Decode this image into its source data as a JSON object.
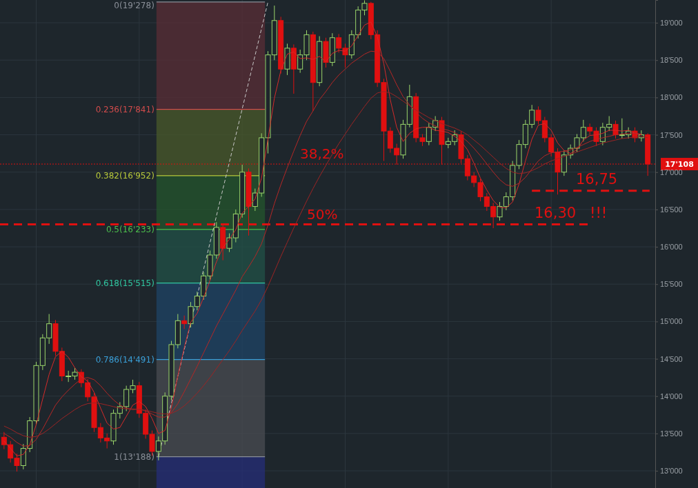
{
  "chart_data": {
    "type": "candlestick",
    "categories": [
      null,
      null,
      null,
      null,
      null,
      null,
      null,
      null,
      null,
      null,
      null,
      null,
      null,
      null,
      null,
      null,
      null,
      null,
      null,
      null,
      null,
      null,
      null,
      null,
      null,
      null,
      null,
      null,
      null,
      null,
      null,
      null,
      null,
      null,
      null,
      null,
      null,
      null,
      null,
      null,
      null,
      null,
      null,
      null,
      null,
      null,
      null,
      null,
      null,
      null,
      null,
      null,
      null,
      null,
      null,
      null,
      null,
      null,
      null,
      null,
      null,
      null,
      null,
      null,
      null,
      null,
      null,
      null,
      null,
      null,
      null,
      null,
      null,
      null,
      null,
      null,
      null,
      null,
      null,
      null,
      null,
      null,
      null,
      null,
      null,
      null,
      null,
      null,
      null,
      null,
      null,
      null,
      null,
      null,
      null,
      null,
      null,
      null,
      null,
      null,
      null
    ],
    "ohlc": [
      [
        13450,
        13520,
        13290,
        13350
      ],
      [
        13350,
        13400,
        13110,
        13170
      ],
      [
        13170,
        13230,
        12990,
        13070
      ],
      [
        13070,
        13360,
        13020,
        13300
      ],
      [
        13300,
        13720,
        13250,
        13670
      ],
      [
        13670,
        14460,
        13620,
        14410
      ],
      [
        14410,
        14830,
        14350,
        14780
      ],
      [
        14780,
        15100,
        14700,
        14970
      ],
      [
        14970,
        15020,
        14540,
        14600
      ],
      [
        14600,
        14650,
        14200,
        14270
      ],
      [
        14270,
        14340,
        14190,
        14270
      ],
      [
        14270,
        14380,
        14220,
        14320
      ],
      [
        14320,
        14360,
        14120,
        14180
      ],
      [
        14180,
        14230,
        13930,
        13990
      ],
      [
        13990,
        14040,
        13520,
        13580
      ],
      [
        13580,
        13640,
        13380,
        13440
      ],
      [
        13440,
        13500,
        13300,
        13400
      ],
      [
        13400,
        13820,
        13350,
        13770
      ],
      [
        13770,
        13920,
        13700,
        13860
      ],
      [
        13860,
        14140,
        13800,
        14090
      ],
      [
        14090,
        14220,
        14040,
        14140
      ],
      [
        14140,
        14190,
        13710,
        13770
      ],
      [
        13770,
        13820,
        13430,
        13490
      ],
      [
        13490,
        13540,
        13200,
        13260
      ],
      [
        13260,
        13460,
        13140,
        13400
      ],
      [
        13400,
        14050,
        13350,
        14000
      ],
      [
        14000,
        14740,
        13950,
        14690
      ],
      [
        14690,
        15100,
        14640,
        15010
      ],
      [
        15010,
        15080,
        14900,
        14970
      ],
      [
        14970,
        15260,
        14920,
        15200
      ],
      [
        15200,
        15400,
        15150,
        15340
      ],
      [
        15340,
        15660,
        15290,
        15610
      ],
      [
        15610,
        15950,
        15560,
        15890
      ],
      [
        15890,
        16330,
        15840,
        16260
      ],
      [
        16260,
        16310,
        15820,
        15980
      ],
      [
        15980,
        16180,
        15930,
        16120
      ],
      [
        16120,
        16500,
        16060,
        16440
      ],
      [
        16440,
        17100,
        16390,
        17000
      ],
      [
        17000,
        17050,
        16150,
        16540
      ],
      [
        16540,
        16780,
        16480,
        16720
      ],
      [
        16720,
        17520,
        16670,
        17460
      ],
      [
        17460,
        18620,
        17250,
        18570
      ],
      [
        18570,
        19230,
        18500,
        19030
      ],
      [
        19030,
        19080,
        18320,
        18380
      ],
      [
        18380,
        18720,
        18300,
        18660
      ],
      [
        18660,
        18710,
        18050,
        18380
      ],
      [
        18380,
        18640,
        18330,
        18570
      ],
      [
        18570,
        18900,
        18500,
        18840
      ],
      [
        18840,
        18880,
        17820,
        18200
      ],
      [
        18200,
        18820,
        18150,
        18750
      ],
      [
        18750,
        18800,
        18400,
        18470
      ],
      [
        18470,
        18860,
        18420,
        18800
      ],
      [
        18800,
        18850,
        18600,
        18660
      ],
      [
        18660,
        18720,
        18400,
        18570
      ],
      [
        18570,
        18900,
        18520,
        18840
      ],
      [
        18840,
        19220,
        18790,
        19170
      ],
      [
        19170,
        19300,
        19100,
        19260
      ],
      [
        19260,
        19280,
        18780,
        18840
      ],
      [
        18840,
        18900,
        18140,
        18200
      ],
      [
        18200,
        18250,
        17150,
        17550
      ],
      [
        17550,
        17600,
        17260,
        17320
      ],
      [
        17320,
        17380,
        17100,
        17230
      ],
      [
        17230,
        17700,
        17180,
        17640
      ],
      [
        17640,
        18170,
        17600,
        18010
      ],
      [
        18010,
        18060,
        17400,
        17460
      ],
      [
        17460,
        17510,
        17350,
        17410
      ],
      [
        17410,
        17660,
        17360,
        17600
      ],
      [
        17600,
        17750,
        17550,
        17690
      ],
      [
        17690,
        17740,
        17100,
        17370
      ],
      [
        17370,
        17460,
        17320,
        17410
      ],
      [
        17410,
        17560,
        17360,
        17500
      ],
      [
        17500,
        17550,
        17120,
        17180
      ],
      [
        17180,
        17230,
        16890,
        16950
      ],
      [
        16950,
        17000,
        16800,
        16860
      ],
      [
        16860,
        16910,
        16610,
        16670
      ],
      [
        16670,
        16720,
        16480,
        16540
      ],
      [
        16540,
        16590,
        16250,
        16400
      ],
      [
        16400,
        16600,
        16350,
        16540
      ],
      [
        16540,
        16730,
        16490,
        16670
      ],
      [
        16670,
        17150,
        16620,
        17090
      ],
      [
        17090,
        17430,
        17040,
        17370
      ],
      [
        17370,
        17700,
        17320,
        17640
      ],
      [
        17640,
        17900,
        17590,
        17830
      ],
      [
        17830,
        17880,
        17640,
        17690
      ],
      [
        17690,
        17740,
        17400,
        17460
      ],
      [
        17460,
        17510,
        17210,
        17270
      ],
      [
        17270,
        17320,
        16700,
        17000
      ],
      [
        17000,
        17290,
        16950,
        17230
      ],
      [
        17230,
        17370,
        17180,
        17320
      ],
      [
        17320,
        17510,
        17270,
        17460
      ],
      [
        17460,
        17700,
        17410,
        17600
      ],
      [
        17600,
        17650,
        17500,
        17550
      ],
      [
        17550,
        17600,
        17350,
        17410
      ],
      [
        17410,
        17660,
        17360,
        17600
      ],
      [
        17600,
        17750,
        17550,
        17640
      ],
      [
        17640,
        17690,
        17450,
        17500
      ],
      [
        17500,
        17720,
        17450,
        17500
      ],
      [
        17500,
        17600,
        17450,
        17550
      ],
      [
        17550,
        17600,
        17400,
        17460
      ],
      [
        17460,
        17560,
        17410,
        17500
      ],
      [
        17500,
        17520,
        16950,
        17108
      ]
    ],
    "series": [
      {
        "type": "line",
        "color": "#d42a2a",
        "values": [
          13400,
          13300,
          13200,
          13220,
          13350,
          13620,
          13960,
          14290,
          14530,
          14600,
          14520,
          14380,
          14260,
          14200,
          14050,
          13840,
          13640,
          13560,
          13580,
          13730,
          13880,
          13930,
          13860,
          13700,
          13500,
          13540,
          13850,
          14270,
          14650,
          14990,
          15110,
          15320,
          15550,
          15800,
          15990,
          16100,
          16230,
          16450,
          16540,
          16640,
          16920,
          17440,
          17990,
          18360,
          18580,
          18610,
          18520,
          18530,
          18510,
          18550,
          18480,
          18590,
          18630,
          18620,
          18690,
          18830,
          18970,
          19010,
          18810,
          18450,
          17970,
          17600,
          17410,
          17520,
          17580,
          17600,
          17600,
          17560,
          17550,
          17530,
          17480,
          17410,
          17300,
          17120,
          16920,
          16760,
          16620,
          16530,
          16520,
          16600,
          16840,
          17150,
          17440,
          17630,
          17650,
          17560,
          17390,
          17290,
          17250,
          17300,
          17430,
          17490,
          17500,
          17520,
          17560,
          17560,
          17550,
          17560,
          17520,
          17500,
          null
        ]
      },
      {
        "type": "line",
        "color": "#b52626",
        "values": [
          13500,
          13450,
          13380,
          13330,
          13340,
          13420,
          13560,
          13720,
          13880,
          13990,
          14080,
          14160,
          14230,
          14250,
          14220,
          14140,
          14040,
          13950,
          13880,
          13840,
          13820,
          13830,
          13800,
          13760,
          13720,
          13720,
          13780,
          13900,
          14060,
          14230,
          14400,
          14580,
          14760,
          14940,
          15100,
          15260,
          15420,
          15600,
          15730,
          15870,
          16040,
          16290,
          16580,
          16830,
          17060,
          17280,
          17490,
          17680,
          17820,
          17970,
          18080,
          18200,
          18300,
          18380,
          18460,
          18520,
          18580,
          18620,
          18610,
          18520,
          18350,
          18170,
          18010,
          17900,
          17800,
          17720,
          17660,
          17620,
          17580,
          17560,
          17530,
          17480,
          17410,
          17320,
          17220,
          17110,
          17000,
          16900,
          16830,
          16810,
          16850,
          16930,
          17040,
          17150,
          17220,
          17260,
          17270,
          17280,
          17300,
          17330,
          17370,
          17410,
          17440,
          17460,
          17480,
          17500,
          17510,
          17520,
          17520,
          17510,
          null
        ]
      },
      {
        "type": "line",
        "color": "#9c2424",
        "values": [
          13600,
          13560,
          13510,
          13470,
          13450,
          13460,
          13500,
          13560,
          13630,
          13700,
          13760,
          13820,
          13870,
          13900,
          13910,
          13900,
          13880,
          13860,
          13840,
          13830,
          13830,
          13820,
          13810,
          13790,
          13770,
          13760,
          13770,
          13810,
          13870,
          13950,
          14040,
          14140,
          14250,
          14370,
          14490,
          14610,
          14740,
          14880,
          15010,
          15140,
          15290,
          15470,
          15670,
          15870,
          16060,
          16250,
          16430,
          16610,
          16780,
          16940,
          17090,
          17240,
          17380,
          17510,
          17640,
          17760,
          17880,
          17990,
          18060,
          18080,
          18060,
          18010,
          17950,
          17890,
          17830,
          17780,
          17730,
          17690,
          17650,
          17620,
          17590,
          17550,
          17500,
          17430,
          17360,
          17280,
          17200,
          17120,
          17050,
          17000,
          16980,
          16990,
          17020,
          17060,
          17110,
          17150,
          17180,
          17210,
          17240,
          17270,
          17300,
          17330,
          17360,
          17390,
          17410,
          17430,
          17450,
          17460,
          17470,
          17480,
          17460
        ]
      },
      {
        "type": "line",
        "color": "#c8c8c8",
        "line_style": "dashed",
        "values": [
          null,
          null,
          null,
          null,
          null,
          null,
          null,
          null,
          null,
          null,
          null,
          null,
          null,
          null,
          null,
          null,
          null,
          null,
          null,
          null,
          null,
          null,
          null,
          null,
          13190,
          null,
          null,
          null,
          null,
          null,
          null,
          null,
          null,
          null,
          null,
          null,
          null,
          null,
          null,
          null,
          null,
          19280,
          null,
          null,
          null,
          null,
          null,
          null,
          null,
          null,
          null,
          null,
          null,
          null,
          null,
          null,
          null,
          null,
          null,
          null,
          null,
          null,
          null,
          null,
          null,
          null,
          null,
          null,
          null,
          null,
          null,
          null,
          null,
          null,
          null,
          null,
          null,
          null,
          null,
          null,
          null,
          null,
          null,
          null,
          null,
          null,
          null,
          null,
          null,
          null,
          null,
          null,
          null,
          null,
          null,
          null,
          null,
          null,
          null,
          null,
          null
        ]
      }
    ],
    "ylim": [
      12770,
      19305
    ],
    "yticks": [
      {
        "value": 13000,
        "label": "13'000"
      },
      {
        "value": 13500,
        "label": "13'500"
      },
      {
        "value": 14000,
        "label": "14'000"
      },
      {
        "value": 14500,
        "label": "14'500"
      },
      {
        "value": 15000,
        "label": "15'000"
      },
      {
        "value": 15500,
        "label": "15'500"
      },
      {
        "value": 16000,
        "label": "16'000"
      },
      {
        "value": 16500,
        "label": "16'500"
      },
      {
        "value": 17000,
        "label": "17'000"
      },
      {
        "value": 17500,
        "label": "17'500"
      },
      {
        "value": 18000,
        "label": "18'000"
      },
      {
        "value": 18500,
        "label": "18'500"
      },
      {
        "value": 19000,
        "label": "19'000"
      }
    ],
    "grid": true,
    "tick_labels": "y",
    "bands": [
      {
        "axis": "y",
        "from": 17841,
        "to": 19278,
        "color": "#5a2d35"
      },
      {
        "axis": "y",
        "from": 16952,
        "to": 17841,
        "color": "#4a5a2a"
      },
      {
        "axis": "y",
        "from": 16233,
        "to": 16952,
        "color": "#24552c"
      },
      {
        "axis": "y",
        "from": 15515,
        "to": 16233,
        "color": "#225247"
      },
      {
        "axis": "y",
        "from": 14491,
        "to": 15515,
        "color": "#1f4466"
      },
      {
        "axis": "y",
        "from": 13188,
        "to": 14491,
        "color": "#4a4c52"
      },
      {
        "axis": "y",
        "from": 12770,
        "to": 13188,
        "color": "#252d78"
      }
    ],
    "ref_lines": [
      {
        "axis": "y",
        "value": 19278,
        "label": "0(19'278)",
        "color": "#8a8f98"
      },
      {
        "axis": "y",
        "value": 17841,
        "label": "0.236(17'841)",
        "color": "#d14b4b"
      },
      {
        "axis": "y",
        "value": 16952,
        "label": "0.382(16'952)",
        "color": "#b8c93a"
      },
      {
        "axis": "y",
        "value": 16233,
        "label": "0.5(16'233)",
        "color": "#4cbf4c"
      },
      {
        "axis": "y",
        "value": 15515,
        "label": "0.618(15'515)",
        "color": "#30c7a0"
      },
      {
        "axis": "y",
        "value": 14491,
        "label": "0.786(14'491)",
        "color": "#3a9fd8"
      },
      {
        "axis": "y",
        "value": 13188,
        "label": "1(13'188)",
        "color": "#8a8f98"
      },
      {
        "axis": "y",
        "value": 17108,
        "label": "17'108",
        "color": "#e01010",
        "line_style": "dotted"
      },
      {
        "axis": "y",
        "value": 16300,
        "color": "#e01010",
        "line_style": "dashed"
      },
      {
        "axis": "y",
        "value": 16750,
        "color": "#e01010",
        "line_style": "dashed"
      }
    ],
    "annotations": [
      {
        "text": "38,2%",
        "y": 17108
      },
      {
        "text": "50%",
        "y": 16300
      },
      "16,30",
      "!!!",
      "16,75"
    ]
  }
}
